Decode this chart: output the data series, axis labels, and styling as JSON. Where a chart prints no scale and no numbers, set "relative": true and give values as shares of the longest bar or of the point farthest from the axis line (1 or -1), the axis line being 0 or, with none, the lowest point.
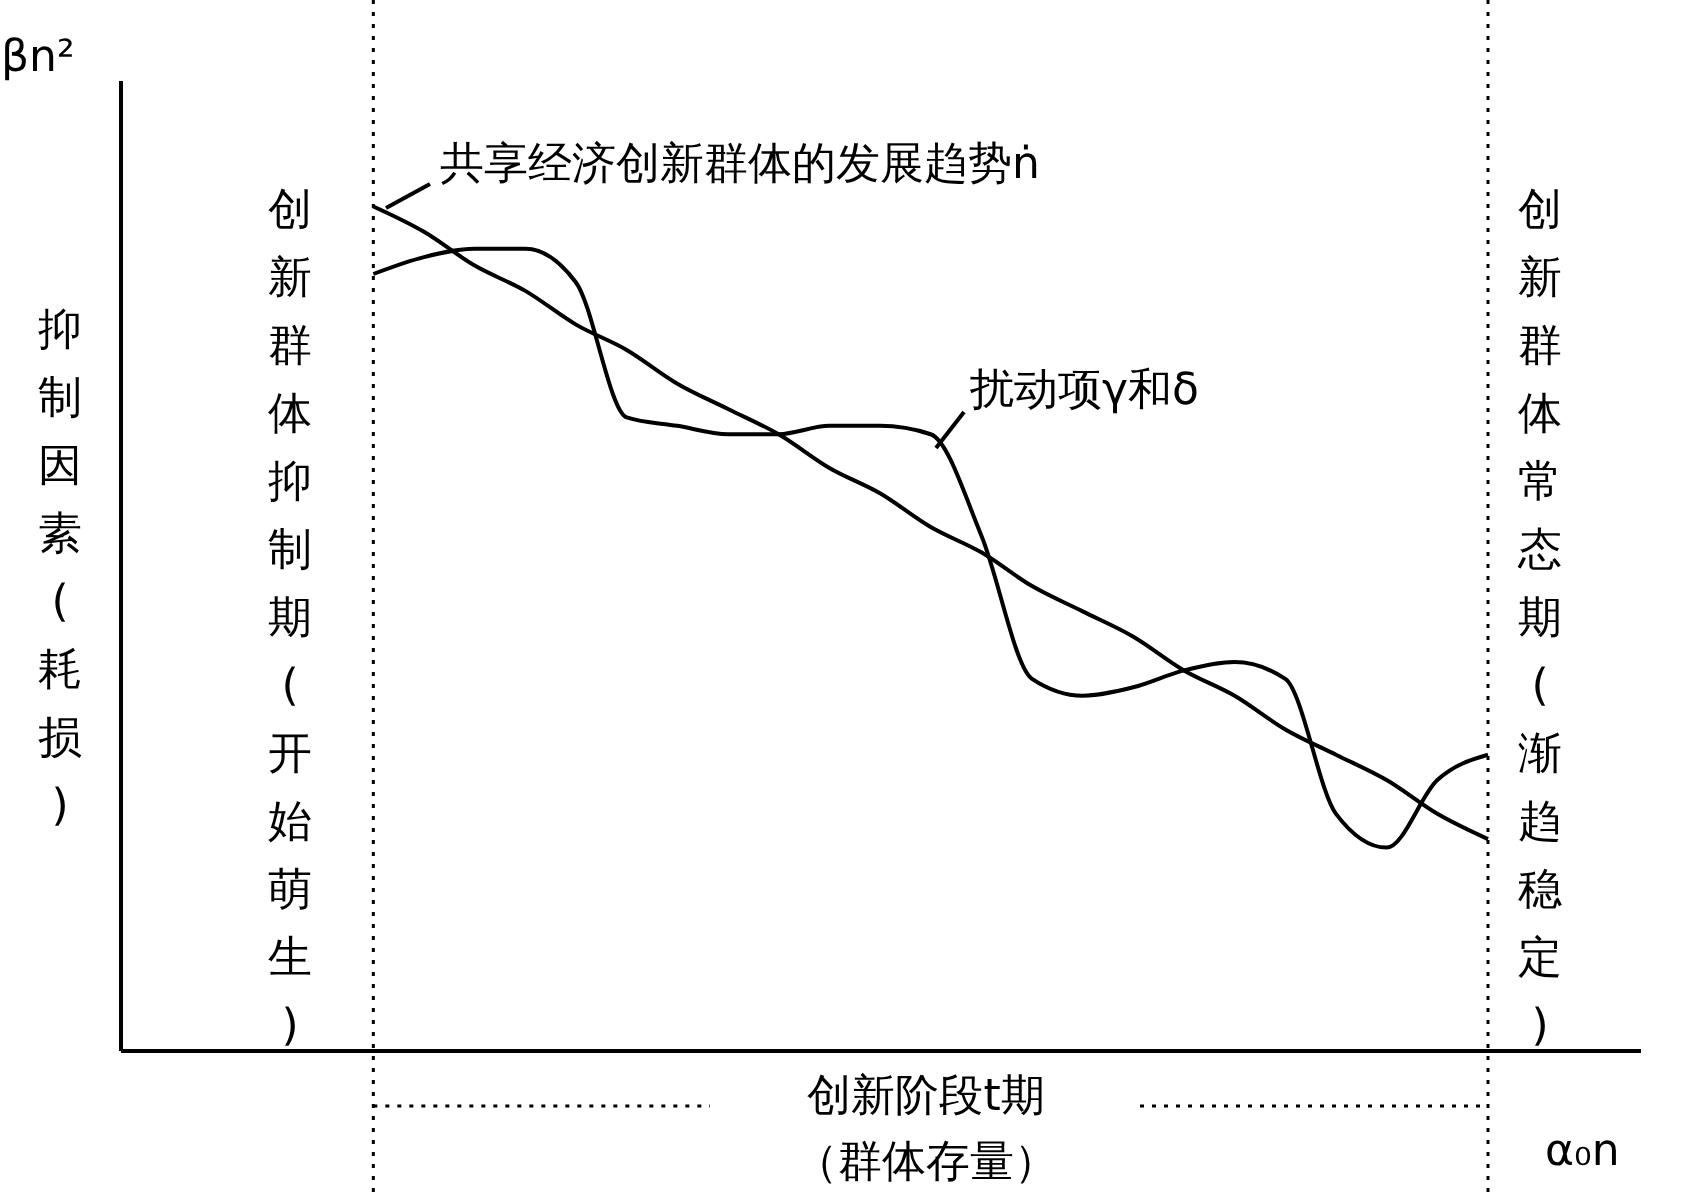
{
  "chart_data": {
    "type": "line",
    "relative": true,
    "xlabel": "α₀n",
    "ylabel": "βn²",
    "marker": "none",
    "grid": false,
    "categories": [
      null,
      null,
      null,
      null,
      null,
      null,
      null,
      null,
      null,
      null,
      null,
      null,
      null,
      null,
      null,
      null,
      null,
      null,
      null,
      null,
      null,
      null,
      null,
      null,
      null,
      null,
      null,
      null,
      null,
      null,
      null
    ],
    "series": [
      {
        "name": "共享经济创新群体的发展趋势ṅ",
        "color": "#000000",
        "values": [
          null,
          null,
          null,
          null,
          null,
          1,
          0.97,
          0.93,
          0.9,
          0.86,
          0.83,
          0.79,
          0.76,
          0.73,
          0.69,
          0.66,
          0.62,
          0.59,
          0.55,
          0.52,
          0.49,
          0.45,
          0.42,
          0.38,
          0.35,
          0.32,
          0.28,
          0.25,
          null,
          null,
          null
        ]
      },
      {
        "name": "扰动项γ和δ",
        "color": "#000000",
        "values": [
          null,
          null,
          null,
          null,
          null,
          0.92,
          0.94,
          0.95,
          0.95,
          0.91,
          0.75,
          0.74,
          0.73,
          0.73,
          0.74,
          0.74,
          0.73,
          0.61,
          0.44,
          0.42,
          0.43,
          0.45,
          0.46,
          0.44,
          0.28,
          0.24,
          0.32,
          0.35,
          null,
          null,
          null
        ]
      }
    ],
    "annotations": [
      "创新群体抑制期(开始萌生)",
      "创新群体常态期(渐趋稳定)",
      "抑制因素(耗损)",
      "创新阶段t期",
      "（群体存量）"
    ]
  }
}
